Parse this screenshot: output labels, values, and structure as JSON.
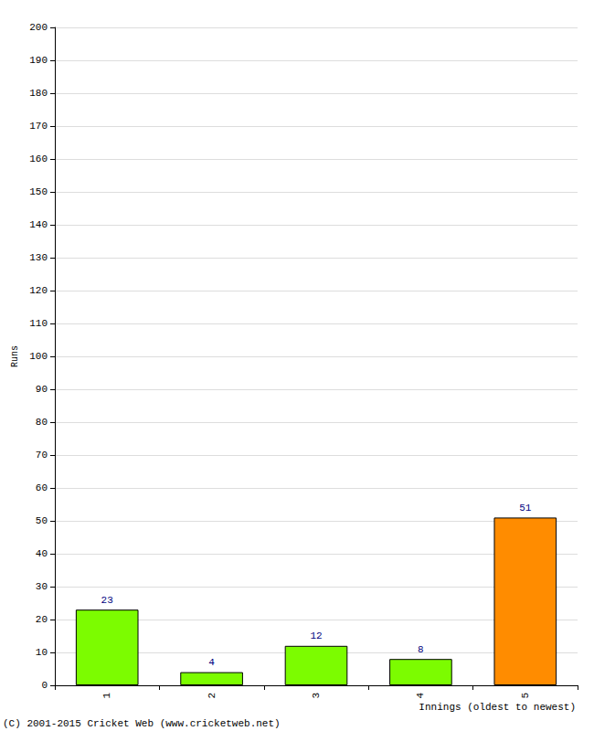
{
  "chart_data": {
    "type": "bar",
    "x_label": "Innings (oldest to newest)",
    "y_label": "Runs",
    "categories": [
      "1",
      "2",
      "3",
      "4",
      "5"
    ],
    "values": [
      23,
      4,
      12,
      8,
      51
    ],
    "colors": [
      "#7cfc00",
      "#7cfc00",
      "#7cfc00",
      "#7cfc00",
      "#ff8c00"
    ],
    "ylim": [
      0,
      200
    ],
    "yticks": [
      0,
      10,
      20,
      30,
      40,
      50,
      60,
      70,
      80,
      90,
      100,
      110,
      120,
      130,
      140,
      150,
      160,
      170,
      180,
      190,
      200
    ],
    "grid": true,
    "data_labels": true,
    "annotations": [
      "(C) 2001-2015 Cricket Web (www.cricketweb.net)"
    ]
  }
}
